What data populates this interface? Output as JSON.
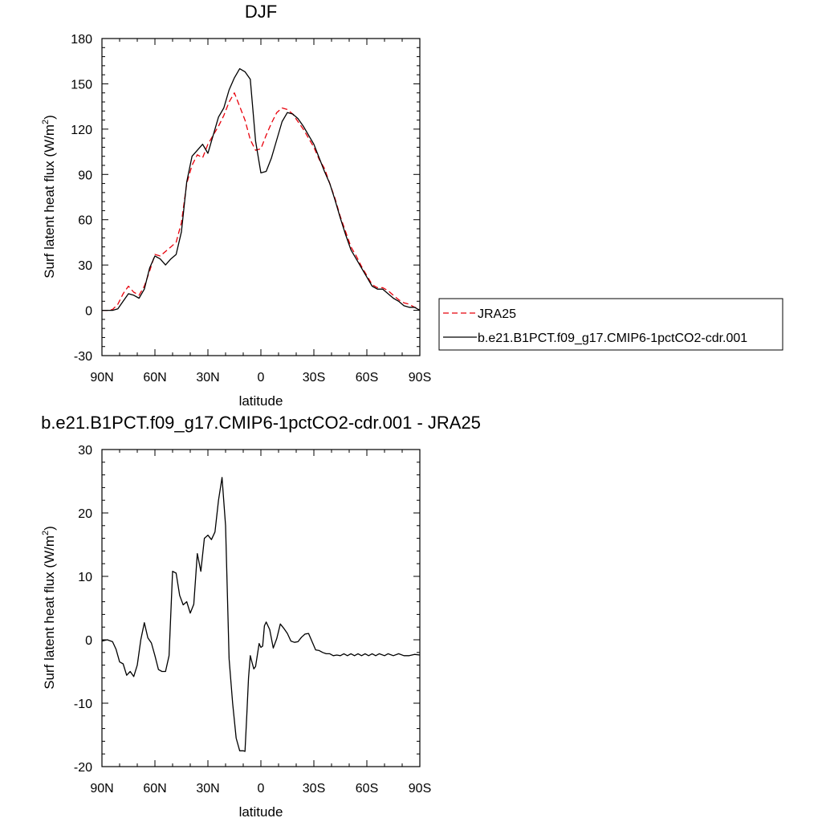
{
  "chart_data": [
    {
      "type": "line",
      "title": "DJF",
      "xlabel": "latitude",
      "ylabel": "Surf latent heat flux (W/m²)",
      "ylabel_main": "Surf latent heat flux (W/m",
      "ylabel_sup": "2",
      "ylabel_close": ")",
      "xlim": [
        90,
        -90
      ],
      "ylim": [
        -30,
        180
      ],
      "xticks": [
        90,
        60,
        30,
        0,
        -30,
        -60,
        -90
      ],
      "xtick_labels": [
        "90N",
        "60N",
        "30N",
        "0",
        "30S",
        "60S",
        "90S"
      ],
      "yticks": [
        -30,
        0,
        30,
        60,
        90,
        120,
        150,
        180
      ],
      "ytick_labels": [
        "-30",
        "0",
        "30",
        "60",
        "90",
        "120",
        "150",
        "180"
      ],
      "legend_placement": "right",
      "series": [
        {
          "name": "JRA25",
          "color": "#e8000b",
          "dash": "dashed",
          "x": [
            90,
            87,
            84,
            81,
            78,
            75,
            72,
            69,
            66,
            63,
            60,
            57,
            54,
            51,
            48,
            45,
            42,
            39,
            36,
            33,
            30,
            27,
            24,
            21,
            18,
            15,
            12,
            9,
            6,
            3,
            0,
            -3,
            -6,
            -9,
            -12,
            -15,
            -18,
            -21,
            -24,
            -27,
            -30,
            -33,
            -36,
            -39,
            -42,
            -45,
            -48,
            -51,
            -54,
            -57,
            -60,
            -63,
            -66,
            -69,
            -72,
            -75,
            -78,
            -81,
            -84,
            -87,
            -90
          ],
          "y": [
            0,
            0,
            0.5,
            4,
            11,
            16,
            12,
            10,
            16,
            26,
            37,
            36,
            39,
            42,
            45,
            58,
            84,
            96,
            103,
            101,
            110,
            116,
            122,
            129,
            138,
            144,
            135,
            126,
            113,
            106,
            107,
            116,
            124,
            131,
            134,
            133,
            130,
            125,
            120,
            114,
            108,
            100,
            94,
            84,
            74,
            62,
            52,
            42,
            36,
            29,
            23,
            17,
            15,
            15,
            13,
            10,
            7,
            5,
            4,
            2,
            1
          ]
        },
        {
          "name": "b.e21.B1PCT.f09_g17.CMIP6-1pctCO2-cdr.001",
          "color": "#000000",
          "dash": "solid",
          "x": [
            90,
            87,
            84,
            81,
            78,
            75,
            72,
            69,
            66,
            63,
            60,
            57,
            54,
            51,
            48,
            45,
            42,
            39,
            36,
            33,
            30,
            27,
            24,
            21,
            18,
            15,
            12,
            9,
            6,
            3,
            0,
            -3,
            -6,
            -9,
            -12,
            -15,
            -18,
            -21,
            -24,
            -27,
            -30,
            -33,
            -36,
            -39,
            -42,
            -45,
            -48,
            -51,
            -54,
            -57,
            -60,
            -63,
            -66,
            -69,
            -72,
            -75,
            -78,
            -81,
            -84,
            -87,
            -90
          ],
          "y": [
            0,
            0,
            0,
            1,
            6,
            11,
            10,
            8,
            14,
            28,
            36,
            34,
            30,
            34,
            37,
            52,
            85,
            102,
            106,
            110,
            104,
            116,
            128,
            134,
            146,
            154,
            160,
            158,
            153,
            112,
            91,
            92,
            101,
            113,
            125,
            131,
            130,
            127,
            122,
            116,
            110,
            101,
            92,
            84,
            73,
            61,
            50,
            40,
            34,
            28,
            22,
            16,
            14,
            14,
            11,
            8,
            6,
            3,
            2,
            2,
            0
          ]
        }
      ]
    },
    {
      "type": "line",
      "title": "b.e21.B1PCT.f09_g17.CMIP6-1pctCO2-cdr.001 - JRA25",
      "xlabel": "latitude",
      "ylabel": "Surf latent heat flux (W/m²)",
      "ylabel_main": "Surf latent heat flux (W/m",
      "ylabel_sup": "2",
      "ylabel_close": ")",
      "xlim": [
        90,
        -90
      ],
      "ylim": [
        -20,
        30
      ],
      "xticks": [
        90,
        60,
        30,
        0,
        -30,
        -60,
        -90
      ],
      "xtick_labels": [
        "90N",
        "60N",
        "30N",
        "0",
        "30S",
        "60S",
        "90S"
      ],
      "yticks": [
        -20,
        -10,
        0,
        10,
        20,
        30
      ],
      "ytick_labels": [
        "-20",
        "-10",
        "0",
        "10",
        "20",
        "30"
      ],
      "series": [
        {
          "color": "#000000",
          "dash": "solid",
          "x": [
            90,
            87,
            84,
            82,
            80,
            78,
            76,
            74,
            72,
            70,
            68,
            66,
            64,
            62,
            60,
            58,
            56,
            54,
            52,
            50,
            48,
            46,
            44,
            42,
            40,
            38,
            36,
            34,
            32,
            30,
            28,
            26,
            24,
            22,
            20,
            18,
            16,
            14,
            12,
            10,
            9,
            8,
            7,
            6,
            5,
            4,
            3,
            2,
            1,
            0,
            -1,
            -2,
            -3,
            -5,
            -7,
            -9,
            -11,
            -13,
            -15,
            -17,
            -19,
            -21,
            -23,
            -25,
            -27,
            -29,
            -31,
            -33,
            -35,
            -37,
            -39,
            -41,
            -43,
            -45,
            -47,
            -49,
            -51,
            -53,
            -55,
            -57,
            -59,
            -61,
            -63,
            -65,
            -67,
            -70,
            -72,
            -75,
            -78,
            -81,
            -84,
            -87,
            -90
          ],
          "y": [
            -0.2,
            0,
            -0.3,
            -1.5,
            -3.5,
            -3.8,
            -5.6,
            -5,
            -5.8,
            -4,
            0,
            2.7,
            0.3,
            -0.5,
            -2.5,
            -4.7,
            -5,
            -5,
            -2.5,
            10.8,
            10.5,
            7,
            5.5,
            6,
            4.2,
            5.6,
            13.6,
            10.8,
            16,
            16.5,
            15.8,
            17,
            22,
            25.6,
            18,
            -3,
            -10,
            -15.5,
            -17.5,
            -17.5,
            -17.6,
            -12,
            -6,
            -2.5,
            -3.6,
            -4.6,
            -4.2,
            -2.4,
            -0.6,
            -1.2,
            -1.0,
            2.2,
            2.8,
            1.6,
            -1.3,
            0.2,
            2.5,
            1.8,
            1.0,
            -0.2,
            -0.4,
            -0.3,
            0.4,
            0.9,
            1.0,
            -0.3,
            -1.6,
            -1.7,
            -2.0,
            -2.2,
            -2.2,
            -2.5,
            -2.4,
            -2.5,
            -2.2,
            -2.5,
            -2.2,
            -2.5,
            -2.2,
            -2.5,
            -2.2,
            -2.5,
            -2.2,
            -2.5,
            -2.2,
            -2.5,
            -2.2,
            -2.5,
            -2.2,
            -2.5,
            -2.5,
            -2.3,
            -2.4
          ]
        }
      ]
    }
  ]
}
